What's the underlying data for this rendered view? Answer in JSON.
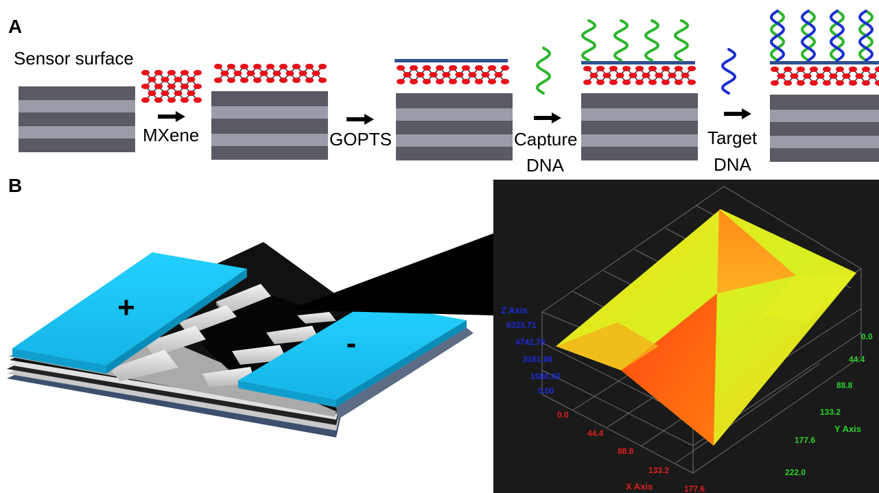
{
  "panel_a": {
    "letter": "A",
    "sensor_surface_label": "Sensor surface",
    "steps": [
      {
        "label_line1": "MXene",
        "label_line2": ""
      },
      {
        "label_line1": "GOPTS",
        "label_line2": ""
      },
      {
        "label_line1": "Capture",
        "label_line2": "DNA"
      },
      {
        "label_line1": "Target",
        "label_line2": "DNA"
      }
    ]
  },
  "panel_b": {
    "letter": "B",
    "electrode_plus": "+",
    "electrode_minus": "-",
    "surface_plot": {
      "z_axis": {
        "title": "Z Axis",
        "ticks": [
          "6323.71",
          "4742.78",
          "3161.86",
          "1580.93",
          "0.00"
        ]
      },
      "x_axis": {
        "title": "X Axis",
        "ticks": [
          "0.0",
          "44.4",
          "88.8",
          "133.2",
          "177.6"
        ]
      },
      "y_axis": {
        "title": "Y Axis",
        "ticks": [
          "0.0",
          "44.4",
          "88.8",
          "133.2",
          "177.6",
          "222.0"
        ]
      }
    }
  },
  "colors": {
    "electrode": "#1ec8f0",
    "mxene_atom": "#e8101a",
    "gopts_layer": "#2f4f8f",
    "capture_dna": "#2bb52b",
    "target_dna": "#1a2fd0",
    "z_axis_text": "#1e2ad8",
    "x_axis_text": "#e01e1e",
    "y_axis_text": "#2ad12a"
  }
}
